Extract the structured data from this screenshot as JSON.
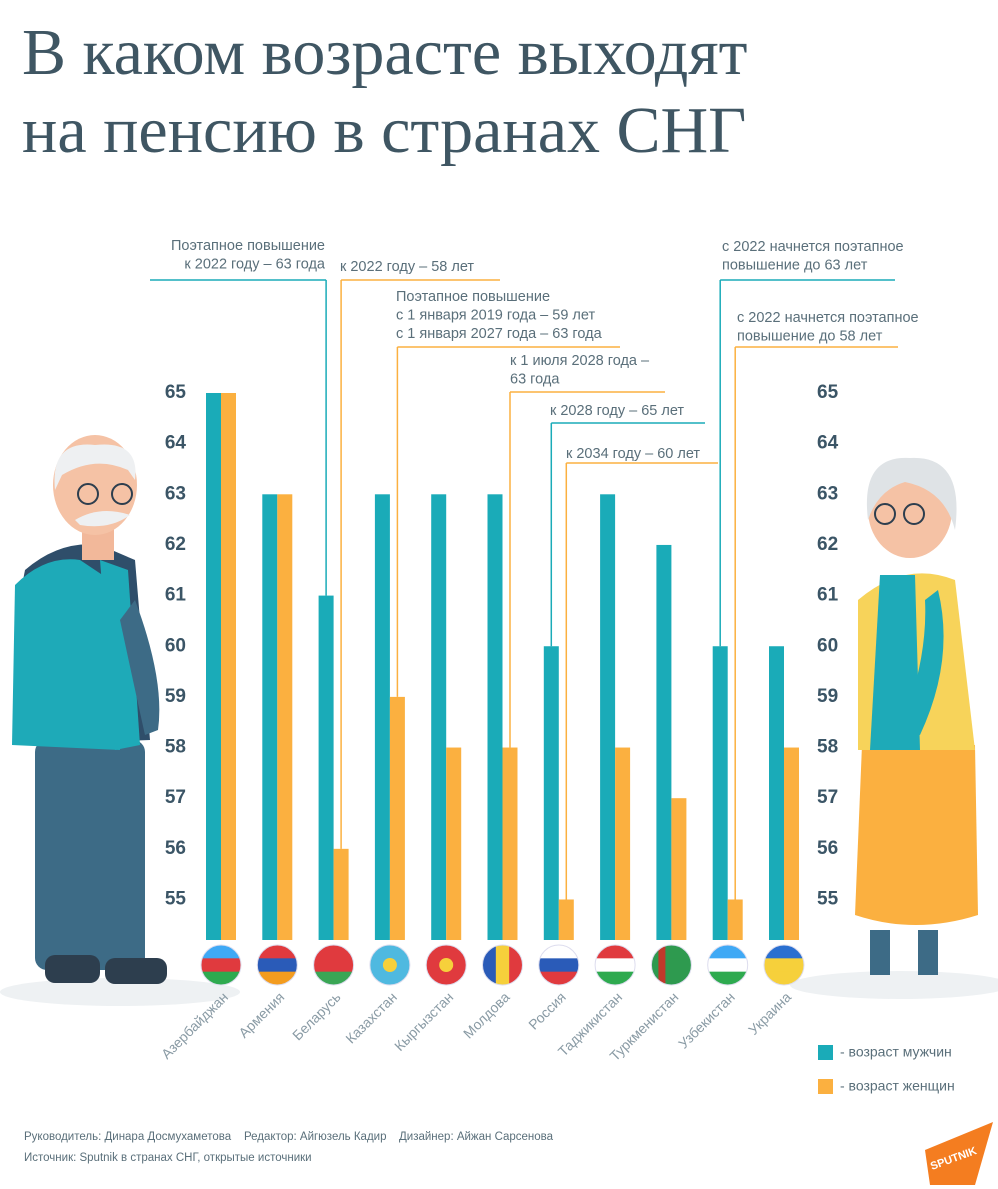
{
  "chart_data": {
    "type": "bar",
    "title": [
      "В каком возрасте выходят",
      "на пенсию в странах СНГ"
    ],
    "categories": [
      "Азербайджан",
      "Армения",
      "Беларусь",
      "Казахстан",
      "Кыргызстан",
      "Молдова",
      "Россия",
      "Таджикистан",
      "Туркменистан",
      "Узбекистан",
      "Украина"
    ],
    "series": [
      {
        "name": "- возраст мужчин",
        "color": "#1aabb8",
        "values": [
          65,
          63,
          61,
          63,
          63,
          63,
          60,
          63,
          62,
          60,
          60
        ]
      },
      {
        "name": "- возраст женщин",
        "color": "#fbb040",
        "values": [
          65,
          63,
          56,
          59,
          58,
          58,
          55,
          58,
          57,
          55,
          58
        ]
      }
    ],
    "ylim": [
      54.2,
      65
    ],
    "yticks": [
      55,
      56,
      57,
      58,
      59,
      60,
      61,
      62,
      63,
      64,
      65
    ],
    "annotations": [
      {
        "lines": [
          "Поэтапное повышение",
          "к 2022 году – 63 года"
        ]
      },
      {
        "lines": [
          "к 2022 году – 58 лет"
        ]
      },
      {
        "lines": [
          "Поэтапное повышение",
          "с 1 января 2019 года – 59 лет",
          "с 1 января 2027 года – 63 года"
        ]
      },
      {
        "lines": [
          "к 1 июля 2028 года –",
          "63 года"
        ]
      },
      {
        "lines": [
          "к 2028 году – 65 лет"
        ]
      },
      {
        "lines": [
          "к 2034 году – 60 лет"
        ]
      },
      {
        "lines": [
          "с 2022 начнется поэтапное",
          "повышение до 63 лет"
        ]
      },
      {
        "lines": [
          "с 2022 начнется поэтапное",
          "повышение до 58 лет"
        ]
      }
    ],
    "credits": [
      "Руководитель: Динара Досмухаметова",
      "Редактор: Айгюзель Кадир",
      "Дизайнер: Айжан Сарсенова"
    ],
    "source": "Источник: Sputnik в странах СНГ, открытые источники",
    "logo": "SPUTNIK"
  }
}
